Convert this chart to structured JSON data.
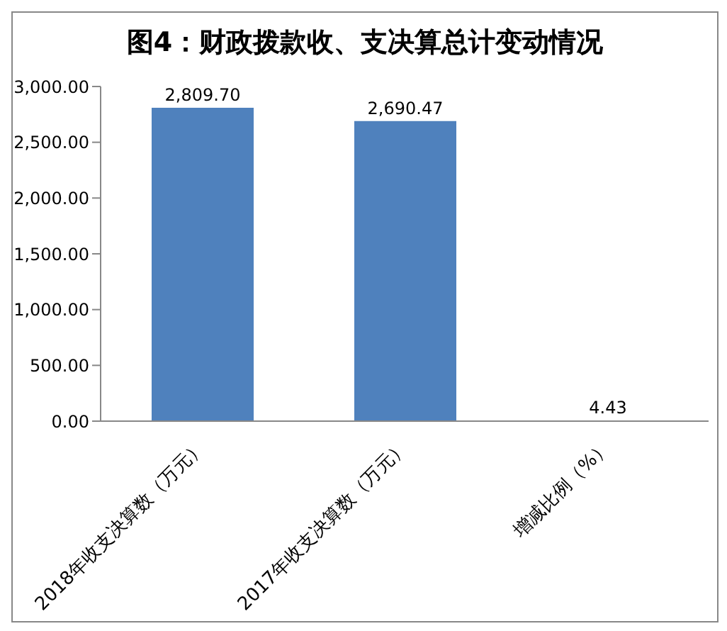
{
  "chart_data": {
    "type": "bar",
    "title": "图4：财政拨款收、支决算总计变动情况",
    "categories": [
      "2018年收支决算数（万元）",
      "2017年收支决算数（万元）",
      "增减比例（%）"
    ],
    "values": [
      2809.7,
      2690.47,
      4.43
    ],
    "value_labels": [
      "2,809.70",
      "2,690.47",
      "4.43"
    ],
    "color": "#4f81bd",
    "ylim": [
      0,
      3000
    ],
    "yticks": [
      {
        "value": 0,
        "label": "0.00"
      },
      {
        "value": 500,
        "label": "500.00"
      },
      {
        "value": 1000,
        "label": "1,000.00"
      },
      {
        "value": 1500,
        "label": "1,500.00"
      },
      {
        "value": 2000,
        "label": "2,000.00"
      },
      {
        "value": 2500,
        "label": "2,500.00"
      },
      {
        "value": 3000,
        "label": "3,000.00"
      }
    ],
    "grid": false,
    "legend": false
  }
}
